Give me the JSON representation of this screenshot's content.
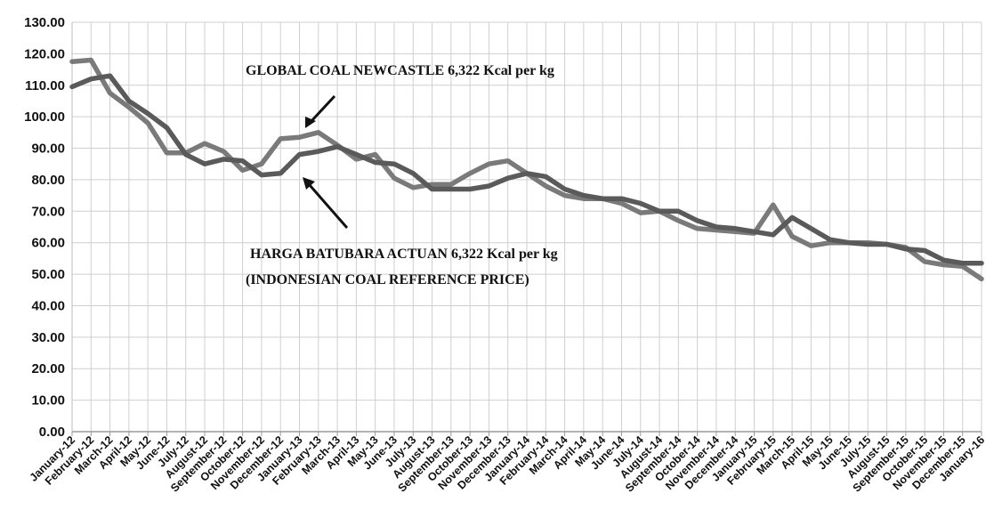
{
  "chart_data": {
    "type": "line",
    "title": "",
    "xlabel": "",
    "ylabel": "",
    "ylim": [
      0,
      130
    ],
    "yticks": [
      "0.00",
      "10.00",
      "20.00",
      "30.00",
      "40.00",
      "50.00",
      "60.00",
      "70.00",
      "80.00",
      "90.00",
      "100.00",
      "110.00",
      "120.00",
      "130.00"
    ],
    "grid": true,
    "legend": "none",
    "x": [
      "January-12",
      "February-12",
      "March-12",
      "April-12",
      "May-12",
      "June-12",
      "July-12",
      "August-12",
      "September-12",
      "October-12",
      "November-12",
      "December-12",
      "January-13",
      "February-13",
      "March-13",
      "April-13",
      "May-13",
      "June-13",
      "July-13",
      "August-13",
      "September-13",
      "October-13",
      "November-13",
      "December-13",
      "January-14",
      "February-14",
      "March-14",
      "April-14",
      "May-14",
      "June-14",
      "July-14",
      "August-14",
      "September-14",
      "October-14",
      "November-14",
      "December-14",
      "January-15",
      "February-15",
      "March-15",
      "April-15",
      "May-15",
      "June-15",
      "July-15",
      "August-15",
      "September-15",
      "October-15",
      "November-15",
      "December-15",
      "January-16"
    ],
    "series": [
      {
        "name": "GLOBAL  COAL  NEWCASTLE  6,322 Kcal per kg",
        "color": "#7a7a7a",
        "values": [
          117.5,
          118,
          107.5,
          103,
          98,
          88.5,
          88.5,
          91.5,
          89,
          83,
          85,
          93,
          93.5,
          95,
          91,
          86.5,
          88,
          80.5,
          77.5,
          78.5,
          78.5,
          82,
          85,
          86,
          82,
          78,
          75,
          74,
          74,
          72.5,
          69.5,
          70,
          67,
          64.5,
          64,
          63.5,
          63,
          72,
          62,
          59,
          60,
          60,
          60,
          59.5,
          58.5,
          54,
          53,
          52.5,
          48.5
        ]
      },
      {
        "name": "HARGA   BATUBARA   ACTUAN   6,322 Kcal per kg",
        "color": "#5a5a5a",
        "values": [
          109.5,
          112,
          113,
          105,
          101,
          96.5,
          88,
          85,
          86.5,
          86,
          81.5,
          82,
          88,
          89,
          90.5,
          88,
          85.5,
          85,
          82,
          77,
          77,
          77,
          78,
          80.5,
          82,
          81,
          77,
          75,
          74,
          74,
          72.5,
          70,
          70,
          67,
          65,
          64.5,
          63.5,
          62.5,
          68,
          64.5,
          61,
          60,
          59.5,
          59.5,
          58,
          57.5,
          54.5,
          53.5,
          53.5
        ]
      }
    ],
    "annotations": [
      {
        "id": "gcn",
        "lines": [
          "GLOBAL  COAL  NEWCASTLE  6,322 Kcal per kg"
        ]
      },
      {
        "id": "hba",
        "lines": [
          "HARGA   BATUBARA   ACTUAN   6,322 Kcal per kg",
          "(INDONESIAN  COAL REFERENCE PRICE)"
        ]
      }
    ]
  }
}
